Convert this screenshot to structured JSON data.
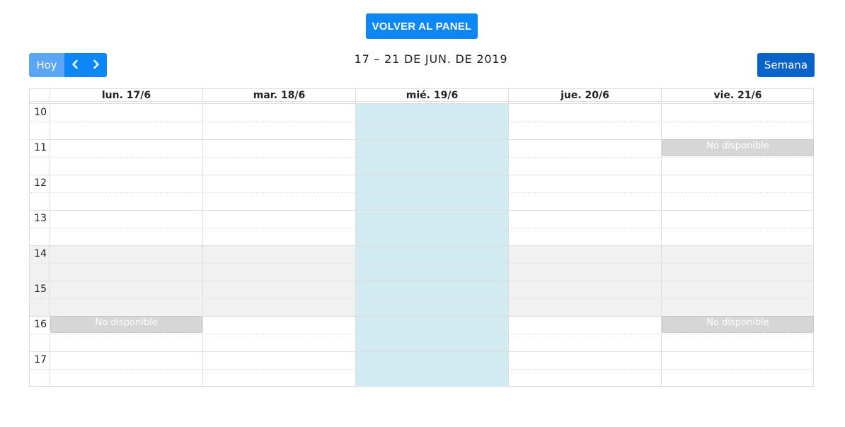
{
  "header": {
    "back_button_label": "VOLVER AL PANEL"
  },
  "toolbar": {
    "today_label": "Hoy",
    "prev_icon": "chevron-left-icon",
    "next_icon": "chevron-right-icon",
    "title": "17 – 21 DE JUN. DE 2019",
    "week_view_label": "Semana"
  },
  "calendar": {
    "days": [
      {
        "label": "lun. 17/6"
      },
      {
        "label": "mar. 18/6"
      },
      {
        "label": "mié. 19/6"
      },
      {
        "label": "jue. 20/6"
      },
      {
        "label": "vie. 21/6"
      }
    ],
    "hours": [
      "10",
      "11",
      "12",
      "13",
      "14",
      "15",
      "16",
      "17"
    ],
    "today_day": "mié. 19/6",
    "unavailable_hours": [
      "14",
      "15"
    ],
    "events": [
      {
        "title": "No disponible",
        "day": "vie. 21/6",
        "start": "11:00",
        "end": "11:30"
      },
      {
        "title": "No disponible",
        "day": "lun. 17/6",
        "start": "16:00",
        "end": "16:30"
      },
      {
        "title": "No disponible",
        "day": "vie. 21/6",
        "start": "16:00",
        "end": "16:30"
      }
    ]
  },
  "colors": {
    "primary": "#0d87f5",
    "today_button": "#5aa6f4",
    "week_button": "#0a63c9",
    "today_column": "#d1ebf1",
    "event_bg": "#d6d6d6"
  }
}
